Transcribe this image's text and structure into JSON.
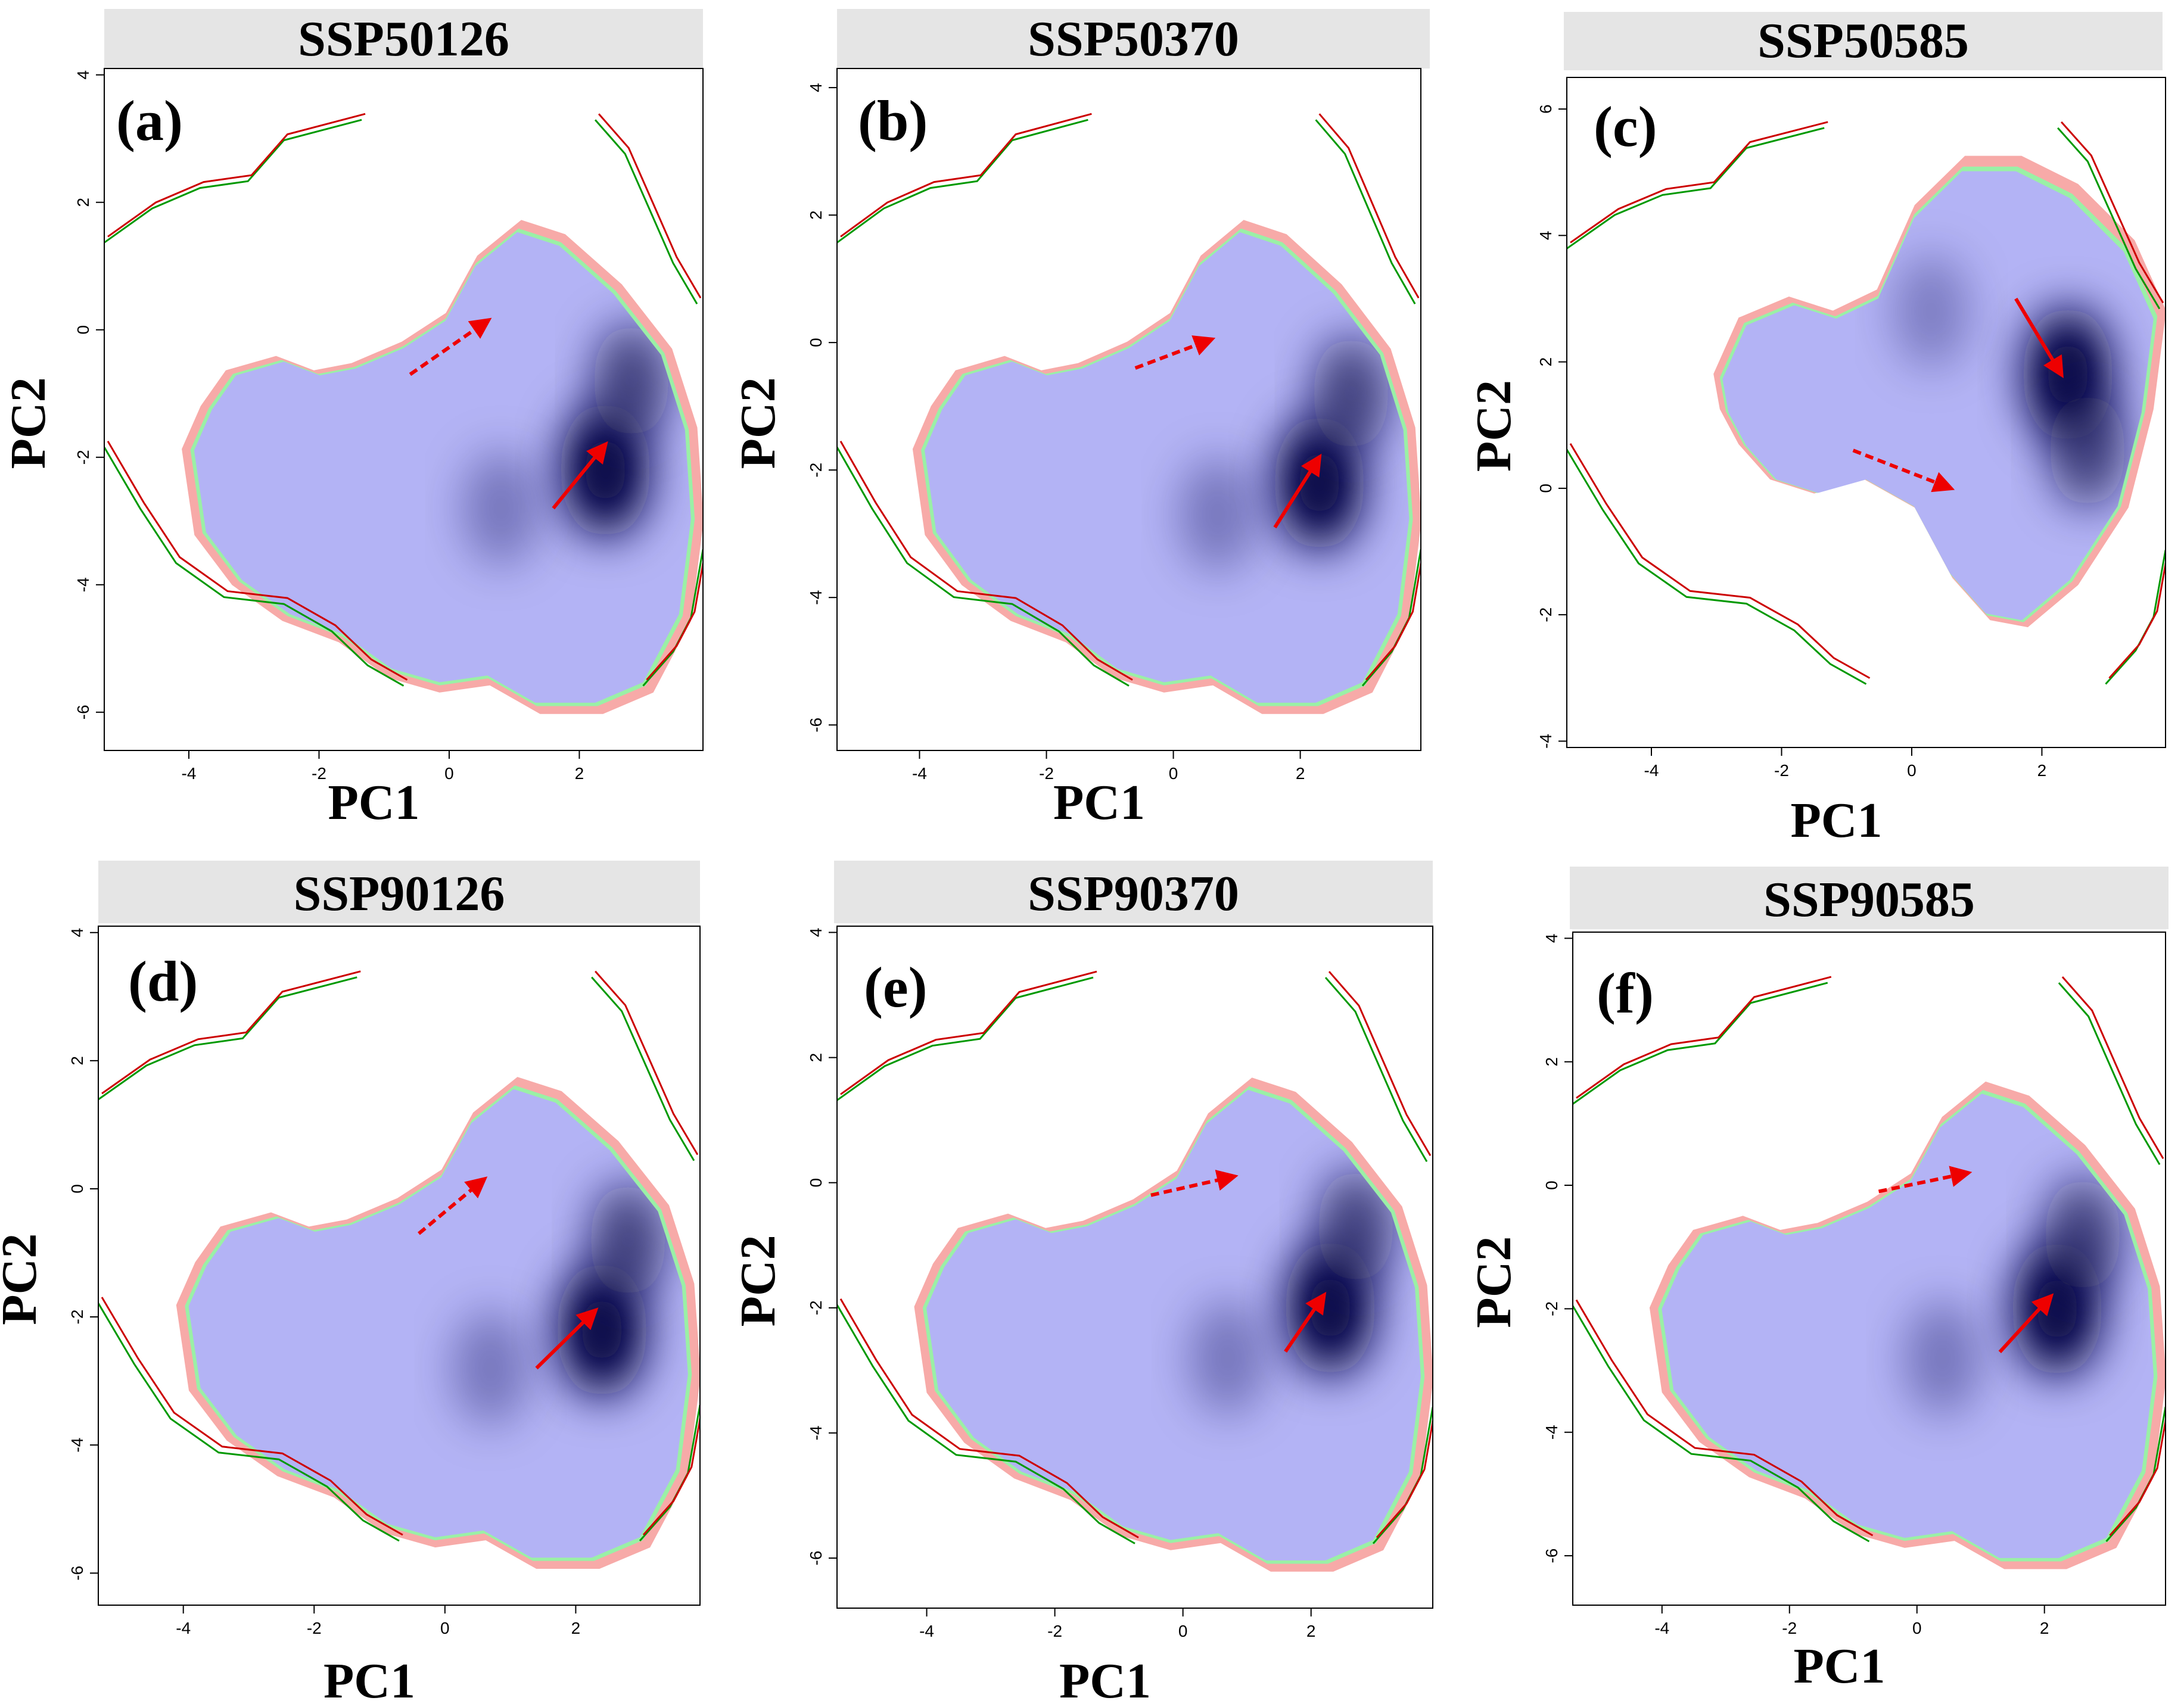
{
  "figure": {
    "xlabel": "PC1",
    "ylabel": "PC2",
    "colors": {
      "panel_header_bg": "#e5e5e5",
      "core_density_light": "#b3b3f5",
      "core_density_dark": "#0d0d4d",
      "range_expansion": "#f7aaa8",
      "range_contraction": "#9af0a6",
      "boundary_historical": "#009900",
      "boundary_future": "#cc0000",
      "arrow": "#ee0000"
    }
  },
  "chart_data": [
    {
      "type": "heatmap",
      "panel": "(a)",
      "title": "SSP50126",
      "xlabel": "PC1",
      "ylabel": "PC2",
      "xlim": [
        -5.3,
        3.9
      ],
      "ylim": [
        -6.6,
        4.1
      ],
      "xticks": [
        -4,
        -2,
        0,
        2
      ],
      "yticks": [
        -6,
        -4,
        -2,
        0,
        2,
        4
      ],
      "density_peaks": [
        {
          "x": 2.4,
          "y": -2.2,
          "w": 1.0
        },
        {
          "x": 2.8,
          "y": -0.8,
          "w": 0.7
        },
        {
          "x": 0.8,
          "y": -2.8,
          "w": 0.35
        }
      ],
      "arrows": [
        {
          "style": "solid",
          "from": [
            1.6,
            -2.8
          ],
          "to": [
            2.4,
            -1.8
          ]
        },
        {
          "style": "dashed",
          "from": [
            -0.6,
            -0.7
          ],
          "to": [
            0.6,
            0.15
          ]
        }
      ]
    },
    {
      "type": "heatmap",
      "panel": "(b)",
      "title": "SSP50370",
      "xlabel": "PC1",
      "ylabel": "PC2",
      "xlim": [
        -5.3,
        3.9
      ],
      "ylim": [
        -6.4,
        4.3
      ],
      "xticks": [
        -4,
        -2,
        0,
        2
      ],
      "yticks": [
        -6,
        -4,
        -2,
        0,
        2,
        4
      ],
      "density_peaks": [
        {
          "x": 2.3,
          "y": -2.2,
          "w": 1.0
        },
        {
          "x": 2.8,
          "y": -0.8,
          "w": 0.7
        },
        {
          "x": 0.7,
          "y": -2.7,
          "w": 0.35
        }
      ],
      "arrows": [
        {
          "style": "solid",
          "from": [
            1.6,
            -2.9
          ],
          "to": [
            2.3,
            -1.8
          ]
        },
        {
          "style": "dashed",
          "from": [
            -0.6,
            -0.4
          ],
          "to": [
            0.6,
            0.05
          ]
        }
      ]
    },
    {
      "type": "heatmap",
      "panel": "(c)",
      "title": "SSP50585",
      "xlabel": "PC1",
      "ylabel": "PC2",
      "xlim": [
        -5.3,
        3.9
      ],
      "ylim": [
        -4.1,
        6.5
      ],
      "xticks": [
        -4,
        -2,
        0,
        2
      ],
      "yticks": [
        -4,
        -2,
        0,
        2,
        4,
        6
      ],
      "density_peaks": [
        {
          "x": 2.4,
          "y": 1.8,
          "w": 1.0
        },
        {
          "x": 2.7,
          "y": 0.6,
          "w": 0.7
        },
        {
          "x": 0.3,
          "y": 2.8,
          "w": 0.3
        }
      ],
      "arrows": [
        {
          "style": "solid",
          "from": [
            1.6,
            3.0
          ],
          "to": [
            2.3,
            1.8
          ]
        },
        {
          "style": "dashed",
          "from": [
            -0.9,
            0.6
          ],
          "to": [
            0.6,
            0
          ]
        }
      ]
    },
    {
      "type": "heatmap",
      "panel": "(d)",
      "title": "SSP90126",
      "xlabel": "PC1",
      "ylabel": "PC2",
      "xlim": [
        -5.3,
        3.9
      ],
      "ylim": [
        -6.5,
        4.1
      ],
      "xticks": [
        -4,
        -2,
        0,
        2
      ],
      "yticks": [
        -6,
        -4,
        -2,
        0,
        2,
        4
      ],
      "density_peaks": [
        {
          "x": 2.4,
          "y": -2.2,
          "w": 1.0
        },
        {
          "x": 2.8,
          "y": -0.8,
          "w": 0.7
        },
        {
          "x": 0.7,
          "y": -2.8,
          "w": 0.35
        }
      ],
      "arrows": [
        {
          "style": "solid",
          "from": [
            1.4,
            -2.8
          ],
          "to": [
            2.3,
            -1.9
          ]
        },
        {
          "style": "dashed",
          "from": [
            -0.4,
            -0.7
          ],
          "to": [
            0.6,
            0.15
          ]
        }
      ]
    },
    {
      "type": "heatmap",
      "panel": "(e)",
      "title": "SSP90370",
      "xlabel": "PC1",
      "ylabel": "PC2",
      "xlim": [
        -5.4,
        3.9
      ],
      "ylim": [
        -6.8,
        4.1
      ],
      "xticks": [
        -4,
        -2,
        0,
        2
      ],
      "yticks": [
        -6,
        -4,
        -2,
        0,
        2,
        4
      ],
      "density_peaks": [
        {
          "x": 2.3,
          "y": -2.0,
          "w": 1.0
        },
        {
          "x": 2.7,
          "y": -0.7,
          "w": 0.7
        },
        {
          "x": 0.7,
          "y": -2.8,
          "w": 0.35
        }
      ],
      "arrows": [
        {
          "style": "solid",
          "from": [
            1.6,
            -2.7
          ],
          "to": [
            2.2,
            -1.8
          ]
        },
        {
          "style": "dashed",
          "from": [
            -0.5,
            -0.2
          ],
          "to": [
            0.8,
            0.1
          ]
        }
      ]
    },
    {
      "type": "heatmap",
      "panel": "(f)",
      "title": "SSP90585",
      "xlabel": "PC1",
      "ylabel": "PC2",
      "xlim": [
        -5.4,
        3.9
      ],
      "ylim": [
        -6.8,
        4.1
      ],
      "xticks": [
        -4,
        -2,
        0,
        2
      ],
      "yticks": [
        -6,
        -4,
        -2,
        0,
        2,
        4
      ],
      "density_peaks": [
        {
          "x": 2.2,
          "y": -2.0,
          "w": 1.0
        },
        {
          "x": 2.6,
          "y": -0.8,
          "w": 0.7
        },
        {
          "x": 0.4,
          "y": -2.8,
          "w": 0.35
        }
      ],
      "arrows": [
        {
          "style": "solid",
          "from": [
            1.3,
            -2.7
          ],
          "to": [
            2.1,
            -1.8
          ]
        },
        {
          "style": "dashed",
          "from": [
            -0.6,
            -0.1
          ],
          "to": [
            0.8,
            0.2
          ]
        }
      ]
    }
  ]
}
